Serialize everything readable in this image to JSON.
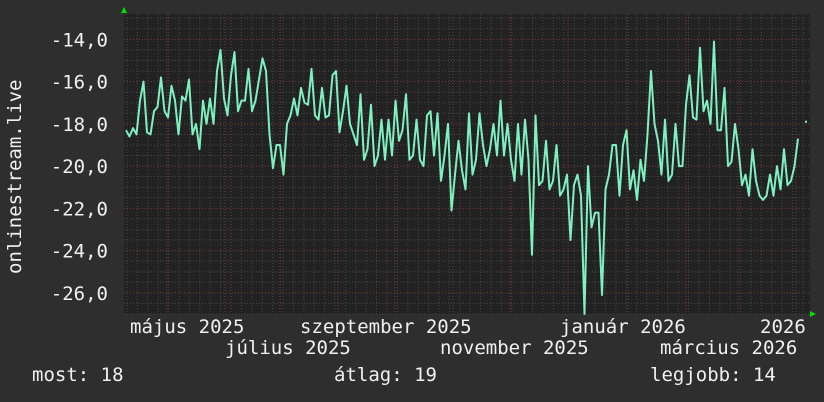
{
  "chart_data": {
    "type": "line",
    "ylabel": "onlinestream.live",
    "ylim": [
      -27.0,
      -12.8
    ],
    "yticks": [
      "-14,0",
      "-16,0",
      "-18,0",
      "-20,0",
      "-22,0",
      "-24,0",
      "-26,0"
    ],
    "ytick_values": [
      -14,
      -16,
      -18,
      -20,
      -22,
      -24,
      -26
    ],
    "xtick_labels": [
      "május 2025",
      "július 2025",
      "szeptember 2025",
      "november 2025",
      "január 2026",
      "március 2026",
      "2026"
    ],
    "grid": true,
    "line_color": "#7ff0c0",
    "values": [
      -18.3,
      -18.6,
      -18.2,
      -18.5,
      -16.9,
      -16.0,
      -18.4,
      -18.5,
      -17.4,
      -17.2,
      -15.8,
      -17.4,
      -17.7,
      -16.2,
      -16.9,
      -18.5,
      -16.7,
      -16.9,
      -15.9,
      -18.5,
      -18.0,
      -19.2,
      -16.9,
      -18.0,
      -16.8,
      -18.0,
      -15.5,
      -14.5,
      -16.8,
      -17.6,
      -15.7,
      -14.6,
      -17.4,
      -16.9,
      -16.9,
      -15.4,
      -17.4,
      -16.9,
      -15.9,
      -14.9,
      -15.5,
      -18.5,
      -20.1,
      -19.0,
      -19.0,
      -20.4,
      -18.0,
      -17.6,
      -16.8,
      -17.6,
      -16.3,
      -17.0,
      -17.1,
      -15.4,
      -17.6,
      -17.8,
      -16.3,
      -17.7,
      -17.6,
      -15.7,
      -15.5,
      -18.4,
      -17.4,
      -16.2,
      -18.0,
      -18.5,
      -19.0,
      -16.6,
      -19.7,
      -19.2,
      -17.1,
      -20.0,
      -19.5,
      -17.8,
      -19.7,
      -17.8,
      -19.5,
      -16.9,
      -18.8,
      -18.3,
      -16.6,
      -19.7,
      -19.5,
      -17.8,
      -19.7,
      -20.0,
      -17.6,
      -17.4,
      -19.5,
      -17.5,
      -20.7,
      -19.5,
      -18.0,
      -22.1,
      -20.4,
      -18.8,
      -20.2,
      -21.1,
      -17.5,
      -20.4,
      -19.7,
      -17.5,
      -19.0,
      -20.0,
      -19.2,
      -18.0,
      -19.5,
      -16.9,
      -19.5,
      -18.0,
      -19.7,
      -20.7,
      -18.0,
      -20.4,
      -17.8,
      -19.7,
      -24.2,
      -17.6,
      -20.9,
      -20.7,
      -18.8,
      -21.1,
      -20.7,
      -19.0,
      -21.4,
      -21.1,
      -20.4,
      -23.5,
      -20.9,
      -20.4,
      -21.4,
      -27.0,
      -20.0,
      -22.9,
      -22.2,
      -22.2,
      -26.1,
      -21.1,
      -20.4,
      -19.0,
      -19.0,
      -21.4,
      -19.0,
      -18.3,
      -21.1,
      -20.2,
      -21.6,
      -19.7,
      -20.7,
      -18.5,
      -15.5,
      -18.0,
      -18.8,
      -20.4,
      -17.8,
      -20.7,
      -20.4,
      -18.0,
      -20.0,
      -20.0,
      -17.1,
      -15.7,
      -17.7,
      -17.8,
      -14.4,
      -17.4,
      -16.9,
      -18.0,
      -14.1,
      -18.3,
      -18.3,
      -16.3,
      -20.0,
      -19.8,
      -18.0,
      -19.2,
      -20.9,
      -20.4,
      -21.4,
      -19.2,
      -20.7,
      -21.4,
      -21.6,
      -21.4,
      -20.4,
      -21.4,
      -20.0,
      -21.1,
      -19.2,
      -20.9,
      -20.7,
      -20.0,
      -18.7,
      null,
      -17.9
    ]
  },
  "legend": {
    "current": "most: 18",
    "average": "átlag: 19",
    "best": "legjobb: 14"
  }
}
